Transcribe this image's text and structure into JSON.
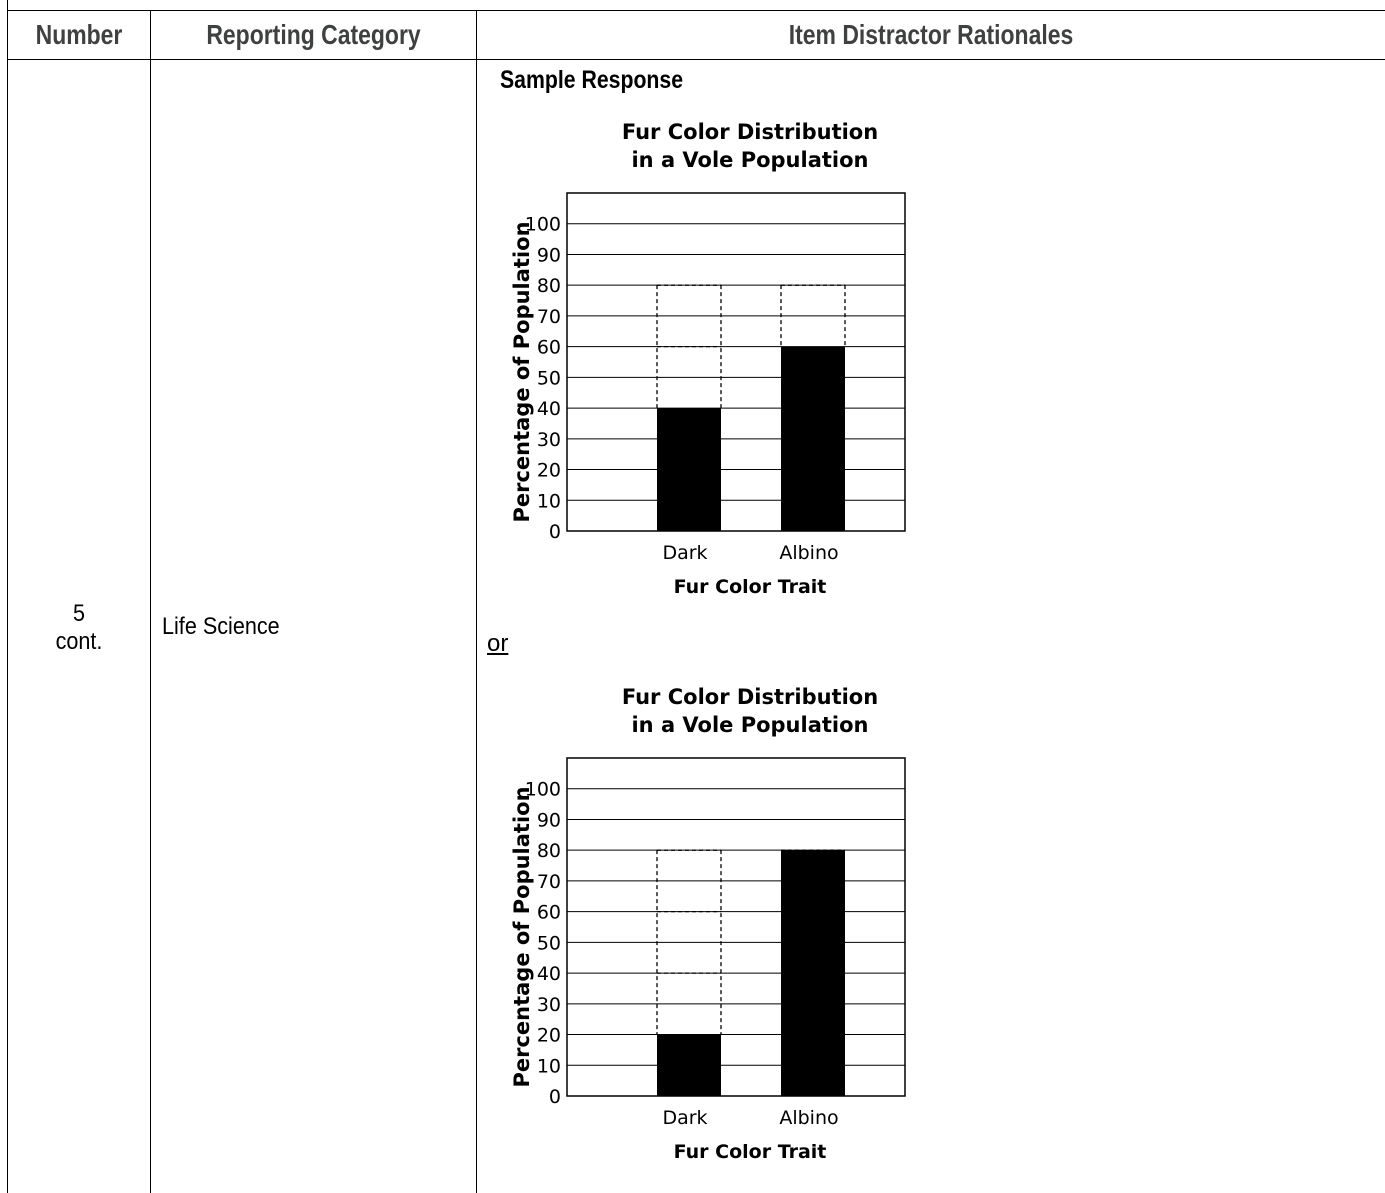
{
  "table": {
    "headers": [
      "Number",
      "Reporting Category",
      "Item Distractor Rationales"
    ],
    "row": {
      "number_line1": "5",
      "number_line2": "cont.",
      "category": "Life Science",
      "rationale_heading": "Sample Response",
      "separator": "or"
    }
  },
  "chart_data": [
    {
      "type": "bar",
      "title": "Fur Color Distribution in a Vole Population",
      "title_lines": [
        "Fur Color Distribution",
        "in a Vole Population"
      ],
      "xlabel": "Fur Color Trait",
      "ylabel": "Percentage of Population",
      "categories": [
        "Dark",
        "Albino"
      ],
      "values": [
        40,
        60
      ],
      "dashed_outline_top": [
        80,
        80
      ],
      "dashed_dividers": [
        [
          60
        ],
        []
      ],
      "ylim": [
        0,
        110
      ],
      "yticks": [
        0,
        10,
        20,
        30,
        40,
        50,
        60,
        70,
        80,
        90,
        100
      ],
      "grid": true,
      "bar_color": "#000000"
    },
    {
      "type": "bar",
      "title": "Fur Color Distribution in a Vole Population",
      "title_lines": [
        "Fur Color Distribution",
        "in a Vole Population"
      ],
      "xlabel": "Fur Color Trait",
      "ylabel": "Percentage of Population",
      "categories": [
        "Dark",
        "Albino"
      ],
      "values": [
        20,
        80
      ],
      "dashed_outline_top": [
        80,
        80
      ],
      "dashed_dividers": [
        [
          40,
          60
        ],
        []
      ],
      "ylim": [
        0,
        110
      ],
      "yticks": [
        0,
        10,
        20,
        30,
        40,
        50,
        60,
        70,
        80,
        90,
        100
      ],
      "grid": true,
      "bar_color": "#000000"
    }
  ]
}
